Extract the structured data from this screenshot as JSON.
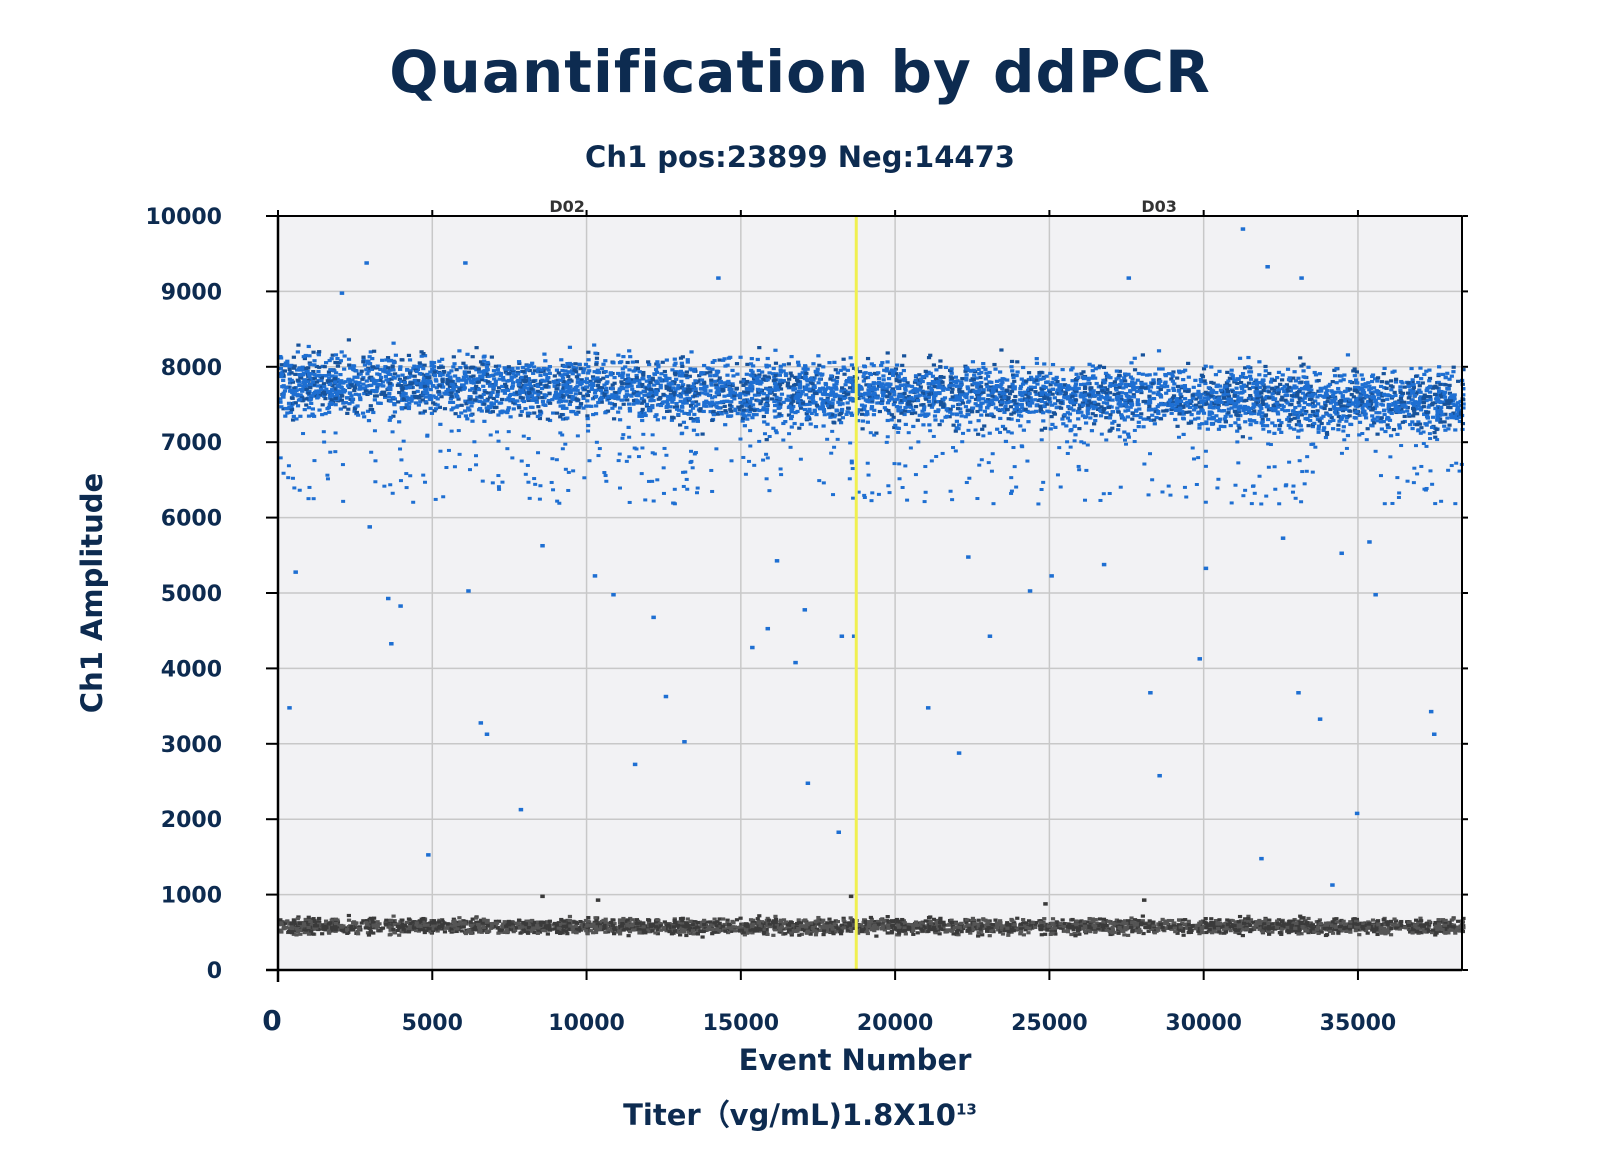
{
  "title": "Quantification by ddPCR",
  "subtitle": "Ch1 pos:23899 Neg:14473",
  "footer": {
    "prefix": "Titer（vg/mL)1.8X10",
    "exponent": "13"
  },
  "chart_data": {
    "type": "scatter",
    "title": "Quantification by ddPCR",
    "subtitle": "Ch1 pos:23899 Neg:14473",
    "xlabel": "Event Number",
    "ylabel": "Ch1 Amplitude",
    "xlim": [
      0,
      38372
    ],
    "ylim": [
      0,
      10000
    ],
    "xticks": [
      "0",
      "5000",
      "10000",
      "15000",
      "20000",
      "25000",
      "30000",
      "35000"
    ],
    "yticks": [
      "0",
      "1000",
      "2000",
      "3000",
      "4000",
      "5000",
      "6000",
      "7000",
      "8000",
      "9000",
      "10000"
    ],
    "grid": true,
    "wells": [
      {
        "name": "D02",
        "x_range": [
          0,
          18740
        ]
      },
      {
        "name": "D03",
        "x_range": [
          18740,
          38372
        ]
      }
    ],
    "well_divider_x": 18740,
    "colors": {
      "positive": "#1e6fd2",
      "positive_dark": "#17529a",
      "negative": "#3a3a3a",
      "divider": "#f0f050",
      "plot_bg": "#f2f2f4",
      "grid": "#c8c8c8"
    },
    "series": [
      {
        "name": "Positive",
        "count": 23899,
        "amplitude_band": [
          7000,
          8600
        ],
        "center_amplitude": 7800,
        "outliers": [
          [
            300,
            3500
          ],
          [
            500,
            5300
          ],
          [
            2000,
            9000
          ],
          [
            2800,
            9400
          ],
          [
            2900,
            5900
          ],
          [
            3500,
            4950
          ],
          [
            3600,
            4350
          ],
          [
            3900,
            4850
          ],
          [
            4800,
            1550
          ],
          [
            6000,
            9400
          ],
          [
            6100,
            5050
          ],
          [
            6500,
            3300
          ],
          [
            6700,
            3150
          ],
          [
            7800,
            2150
          ],
          [
            8500,
            5650
          ],
          [
            10200,
            5250
          ],
          [
            10800,
            5000
          ],
          [
            11500,
            2750
          ],
          [
            12100,
            4700
          ],
          [
            12500,
            3650
          ],
          [
            13100,
            3050
          ],
          [
            14200,
            9200
          ],
          [
            15300,
            4300
          ],
          [
            15800,
            4550
          ],
          [
            16100,
            5450
          ],
          [
            16700,
            4100
          ],
          [
            17000,
            4800
          ],
          [
            17100,
            2500
          ],
          [
            18100,
            1850
          ],
          [
            18200,
            4450
          ],
          [
            18600,
            4450
          ],
          [
            21000,
            3500
          ],
          [
            22000,
            2900
          ],
          [
            22300,
            5500
          ],
          [
            23000,
            4450
          ],
          [
            24300,
            5050
          ],
          [
            25000,
            5250
          ],
          [
            26700,
            5400
          ],
          [
            27500,
            9200
          ],
          [
            28200,
            3700
          ],
          [
            28500,
            2600
          ],
          [
            29800,
            4150
          ],
          [
            30000,
            5350
          ],
          [
            31200,
            9850
          ],
          [
            31800,
            1500
          ],
          [
            32000,
            9350
          ],
          [
            32500,
            5750
          ],
          [
            33000,
            3700
          ],
          [
            33100,
            9200
          ],
          [
            33700,
            3350
          ],
          [
            34100,
            1150
          ],
          [
            34400,
            5550
          ],
          [
            34900,
            2100
          ],
          [
            35300,
            5700
          ],
          [
            35500,
            5000
          ],
          [
            37300,
            3450
          ],
          [
            37400,
            3150
          ]
        ]
      },
      {
        "name": "Negative",
        "count": 14473,
        "amplitude_band": [
          450,
          780
        ],
        "center_amplitude": 600,
        "outliers": [
          [
            8500,
            1000
          ],
          [
            10300,
            950
          ],
          [
            18500,
            1000
          ],
          [
            24800,
            900
          ],
          [
            28000,
            950
          ]
        ]
      }
    ]
  }
}
